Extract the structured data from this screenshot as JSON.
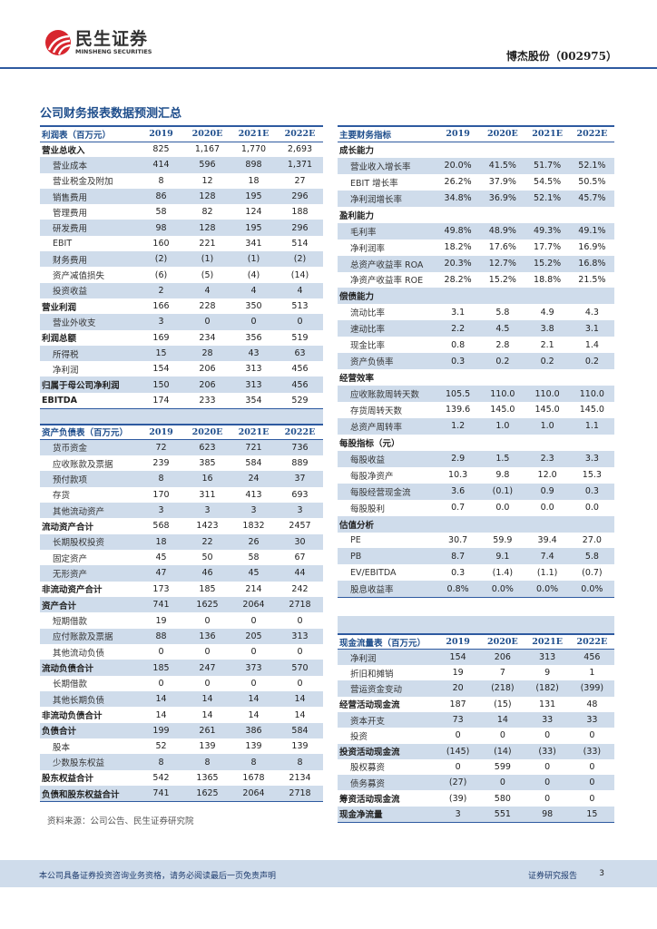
{
  "header": {
    "logo_cn": "民生证券",
    "logo_en": "MINSHENG SECURITIES",
    "stock": "博杰股份（002975）",
    "brand_color": "#d7262e",
    "accent_color": "#2e5aa0",
    "shade_color": "#cfdceb"
  },
  "section_title": "公司财务报表数据预测汇总",
  "years": [
    "2019",
    "2020E",
    "2021E",
    "2022E"
  ],
  "income": {
    "title": "利润表（百万元）",
    "rows": [
      {
        "label": "营业总收入",
        "type": "total",
        "values": [
          "825",
          "1,167",
          "1,770",
          "2,693"
        ]
      },
      {
        "label": "营业成本",
        "type": "item",
        "values": [
          "414",
          "596",
          "898",
          "1,371"
        ]
      },
      {
        "label": "营业税金及附加",
        "type": "item",
        "values": [
          "8",
          "12",
          "18",
          "27"
        ]
      },
      {
        "label": "销售费用",
        "type": "item",
        "values": [
          "86",
          "128",
          "195",
          "296"
        ]
      },
      {
        "label": "管理费用",
        "type": "item",
        "values": [
          "58",
          "82",
          "124",
          "188"
        ]
      },
      {
        "label": "研发费用",
        "type": "item",
        "values": [
          "98",
          "128",
          "195",
          "296"
        ]
      },
      {
        "label": "EBIT",
        "type": "item",
        "values": [
          "160",
          "221",
          "341",
          "514"
        ]
      },
      {
        "label": "财务费用",
        "type": "item",
        "values": [
          "(2)",
          "(1)",
          "(1)",
          "(2)"
        ]
      },
      {
        "label": "资产减值损失",
        "type": "item",
        "values": [
          "(6)",
          "(5)",
          "(4)",
          "(14)"
        ]
      },
      {
        "label": "投资收益",
        "type": "item",
        "values": [
          "2",
          "4",
          "4",
          "4"
        ]
      },
      {
        "label": "营业利润",
        "type": "total",
        "values": [
          "166",
          "228",
          "350",
          "513"
        ]
      },
      {
        "label": "营业外收支",
        "type": "item",
        "values": [
          "3",
          "0",
          "0",
          "0"
        ]
      },
      {
        "label": "利润总额",
        "type": "total",
        "values": [
          "169",
          "234",
          "356",
          "519"
        ]
      },
      {
        "label": "所得税",
        "type": "item",
        "values": [
          "15",
          "28",
          "43",
          "63"
        ]
      },
      {
        "label": "净利润",
        "type": "item",
        "values": [
          "154",
          "206",
          "313",
          "456"
        ]
      },
      {
        "label": "归属于母公司净利润",
        "type": "total",
        "values": [
          "150",
          "206",
          "313",
          "456"
        ]
      },
      {
        "label": "EBITDA",
        "type": "total",
        "values": [
          "174",
          "233",
          "354",
          "529"
        ]
      }
    ]
  },
  "balance": {
    "title": "资产负债表（百万元）",
    "rows": [
      {
        "label": "货币资金",
        "type": "item",
        "values": [
          "72",
          "623",
          "721",
          "736"
        ]
      },
      {
        "label": "应收账款及票据",
        "type": "item",
        "values": [
          "239",
          "385",
          "584",
          "889"
        ]
      },
      {
        "label": "预付款项",
        "type": "item",
        "values": [
          "8",
          "16",
          "24",
          "37"
        ]
      },
      {
        "label": "存货",
        "type": "item",
        "values": [
          "170",
          "311",
          "413",
          "693"
        ]
      },
      {
        "label": "其他流动资产",
        "type": "item",
        "values": [
          "3",
          "3",
          "3",
          "3"
        ]
      },
      {
        "label": "流动资产合计",
        "type": "total",
        "values": [
          "568",
          "1423",
          "1832",
          "2457"
        ]
      },
      {
        "label": "长期股权投资",
        "type": "item",
        "values": [
          "18",
          "22",
          "26",
          "30"
        ]
      },
      {
        "label": "固定资产",
        "type": "item",
        "values": [
          "45",
          "50",
          "58",
          "67"
        ]
      },
      {
        "label": "无形资产",
        "type": "item",
        "values": [
          "47",
          "46",
          "45",
          "44"
        ]
      },
      {
        "label": "非流动资产合计",
        "type": "total",
        "values": [
          "173",
          "185",
          "214",
          "242"
        ]
      },
      {
        "label": "资产合计",
        "type": "total",
        "values": [
          "741",
          "1625",
          "2064",
          "2718"
        ]
      },
      {
        "label": "短期借款",
        "type": "item",
        "values": [
          "19",
          "0",
          "0",
          "0"
        ]
      },
      {
        "label": "应付账款及票据",
        "type": "item",
        "values": [
          "88",
          "136",
          "205",
          "313"
        ]
      },
      {
        "label": "其他流动负债",
        "type": "item",
        "values": [
          "0",
          "0",
          "0",
          "0"
        ]
      },
      {
        "label": "流动负债合计",
        "type": "total",
        "values": [
          "185",
          "247",
          "373",
          "570"
        ]
      },
      {
        "label": "长期借款",
        "type": "item",
        "values": [
          "0",
          "0",
          "0",
          "0"
        ]
      },
      {
        "label": "其他长期负债",
        "type": "item",
        "values": [
          "14",
          "14",
          "14",
          "14"
        ]
      },
      {
        "label": "非流动负债合计",
        "type": "total",
        "values": [
          "14",
          "14",
          "14",
          "14"
        ]
      },
      {
        "label": "负债合计",
        "type": "total",
        "values": [
          "199",
          "261",
          "386",
          "584"
        ]
      },
      {
        "label": "股本",
        "type": "item",
        "values": [
          "52",
          "139",
          "139",
          "139"
        ]
      },
      {
        "label": "少数股东权益",
        "type": "item",
        "values": [
          "8",
          "8",
          "8",
          "8"
        ]
      },
      {
        "label": "股东权益合计",
        "type": "total",
        "values": [
          "542",
          "1365",
          "1678",
          "2134"
        ]
      },
      {
        "label": "负债和股东权益合计",
        "type": "total",
        "values": [
          "741",
          "1625",
          "2064",
          "2718"
        ]
      }
    ]
  },
  "indicators": {
    "title": "主要财务指标",
    "rows": [
      {
        "label": "成长能力",
        "type": "total",
        "values": [
          "",
          "",
          "",
          ""
        ]
      },
      {
        "label": "营业收入增长率",
        "type": "item",
        "values": [
          "20.0%",
          "41.5%",
          "51.7%",
          "52.1%"
        ]
      },
      {
        "label": "EBIT 增长率",
        "type": "item",
        "values": [
          "26.2%",
          "37.9%",
          "54.5%",
          "50.5%"
        ]
      },
      {
        "label": "净利润增长率",
        "type": "item",
        "values": [
          "34.8%",
          "36.9%",
          "52.1%",
          "45.7%"
        ]
      },
      {
        "label": "盈利能力",
        "type": "total",
        "values": [
          "",
          "",
          "",
          ""
        ]
      },
      {
        "label": "毛利率",
        "type": "item",
        "values": [
          "49.8%",
          "48.9%",
          "49.3%",
          "49.1%"
        ]
      },
      {
        "label": "净利润率",
        "type": "item",
        "values": [
          "18.2%",
          "17.6%",
          "17.7%",
          "16.9%"
        ]
      },
      {
        "label": "总资产收益率 ROA",
        "type": "item",
        "values": [
          "20.3%",
          "12.7%",
          "15.2%",
          "16.8%"
        ]
      },
      {
        "label": "净资产收益率 ROE",
        "type": "item",
        "values": [
          "28.2%",
          "15.2%",
          "18.8%",
          "21.5%"
        ]
      },
      {
        "label": "偿债能力",
        "type": "total",
        "values": [
          "",
          "",
          "",
          ""
        ]
      },
      {
        "label": "流动比率",
        "type": "item",
        "values": [
          "3.1",
          "5.8",
          "4.9",
          "4.3"
        ]
      },
      {
        "label": "速动比率",
        "type": "item",
        "values": [
          "2.2",
          "4.5",
          "3.8",
          "3.1"
        ]
      },
      {
        "label": "现金比率",
        "type": "item",
        "values": [
          "0.8",
          "2.8",
          "2.1",
          "1.4"
        ]
      },
      {
        "label": "资产负债率",
        "type": "item",
        "values": [
          "0.3",
          "0.2",
          "0.2",
          "0.2"
        ]
      },
      {
        "label": "经营效率",
        "type": "total",
        "values": [
          "",
          "",
          "",
          ""
        ]
      },
      {
        "label": "应收账款周转天数",
        "type": "item",
        "values": [
          "105.5",
          "110.0",
          "110.0",
          "110.0"
        ]
      },
      {
        "label": "存货周转天数",
        "type": "item",
        "values": [
          "139.6",
          "145.0",
          "145.0",
          "145.0"
        ]
      },
      {
        "label": "总资产周转率",
        "type": "item",
        "values": [
          "1.2",
          "1.0",
          "1.0",
          "1.1"
        ]
      },
      {
        "label": "每股指标（元）",
        "type": "total",
        "values": [
          "",
          "",
          "",
          ""
        ]
      },
      {
        "label": "每股收益",
        "type": "item",
        "values": [
          "2.9",
          "1.5",
          "2.3",
          "3.3"
        ]
      },
      {
        "label": "每股净资产",
        "type": "item",
        "values": [
          "10.3",
          "9.8",
          "12.0",
          "15.3"
        ]
      },
      {
        "label": "每股经营现金流",
        "type": "item",
        "values": [
          "3.6",
          "(0.1)",
          "0.9",
          "0.3"
        ]
      },
      {
        "label": "每股股利",
        "type": "item",
        "values": [
          "0.7",
          "0.0",
          "0.0",
          "0.0"
        ]
      },
      {
        "label": "估值分析",
        "type": "total",
        "values": [
          "",
          "",
          "",
          ""
        ]
      },
      {
        "label": "PE",
        "type": "item",
        "values": [
          "30.7",
          "59.9",
          "39.4",
          "27.0"
        ]
      },
      {
        "label": "PB",
        "type": "item",
        "values": [
          "8.7",
          "9.1",
          "7.4",
          "5.8"
        ]
      },
      {
        "label": "EV/EBITDA",
        "type": "item",
        "values": [
          "0.3",
          "(1.4)",
          "(1.1)",
          "(0.7)"
        ]
      },
      {
        "label": "股息收益率",
        "type": "item",
        "values": [
          "0.8%",
          "0.0%",
          "0.0%",
          "0.0%"
        ]
      }
    ]
  },
  "cashflow": {
    "title": "现金流量表（百万元）",
    "rows": [
      {
        "label": "净利润",
        "type": "item",
        "values": [
          "154",
          "206",
          "313",
          "456"
        ]
      },
      {
        "label": "折旧和摊销",
        "type": "item",
        "values": [
          "19",
          "7",
          "9",
          "1"
        ]
      },
      {
        "label": "营运资金变动",
        "type": "item",
        "values": [
          "20",
          "(218)",
          "(182)",
          "(399)"
        ]
      },
      {
        "label": "经营活动现金流",
        "type": "total",
        "values": [
          "187",
          "(15)",
          "131",
          "48"
        ]
      },
      {
        "label": "资本开支",
        "type": "item",
        "values": [
          "73",
          "14",
          "33",
          "33"
        ]
      },
      {
        "label": "投资",
        "type": "item",
        "values": [
          "0",
          "0",
          "0",
          "0"
        ]
      },
      {
        "label": "投资活动现金流",
        "type": "total",
        "values": [
          "(145)",
          "(14)",
          "(33)",
          "(33)"
        ]
      },
      {
        "label": "股权募资",
        "type": "item",
        "values": [
          "0",
          "599",
          "0",
          "0"
        ]
      },
      {
        "label": "债务募资",
        "type": "item",
        "values": [
          "(27)",
          "0",
          "0",
          "0"
        ]
      },
      {
        "label": "筹资活动现金流",
        "type": "total",
        "values": [
          "(39)",
          "580",
          "0",
          "0"
        ]
      },
      {
        "label": "现金净流量",
        "type": "total",
        "values": [
          "3",
          "551",
          "98",
          "15"
        ]
      }
    ]
  },
  "source": "资料来源：公司公告、民生证券研究院",
  "footer": {
    "disclaimer": "本公司具备证券投资咨询业务资格，请务必阅读最后一页免责声明",
    "report_type": "证券研究报告",
    "page": "3"
  }
}
